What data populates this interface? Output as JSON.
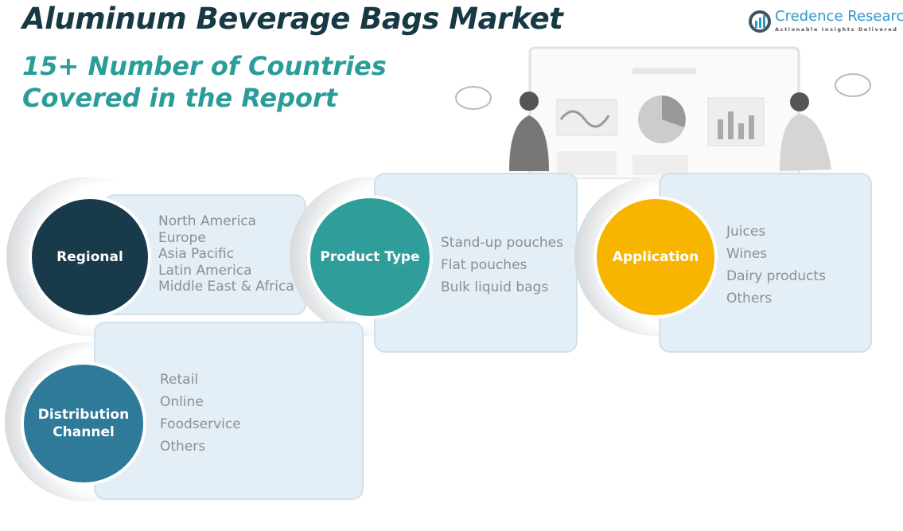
{
  "title": "Aluminum Beverage Bags Market",
  "subtitle_line1": "15+ Number of Countries",
  "subtitle_line2": "Covered in the Report",
  "logo": {
    "name": "Credence Research",
    "tagline": "Actionable Insights Delivered"
  },
  "colors": {
    "regional": "#183a4a",
    "product": "#2f9e9b",
    "application": "#f7b500",
    "distribution": "#2f7a98"
  },
  "segments": {
    "regional": {
      "label": "Regional",
      "items": [
        "North America",
        "Europe",
        "Asia Pacific",
        "Latin America",
        "Middle East & Africa"
      ]
    },
    "product": {
      "label": "Product Type",
      "items": [
        "Stand-up pouches",
        "Flat pouches",
        "Bulk liquid bags"
      ]
    },
    "application": {
      "label": "Application",
      "items": [
        "Juices",
        "Wines",
        "Dairy products",
        "Others"
      ]
    },
    "distribution": {
      "label": "Distribution Channel",
      "items": [
        "Retail",
        "Online",
        "Foodservice",
        "Others"
      ]
    }
  }
}
